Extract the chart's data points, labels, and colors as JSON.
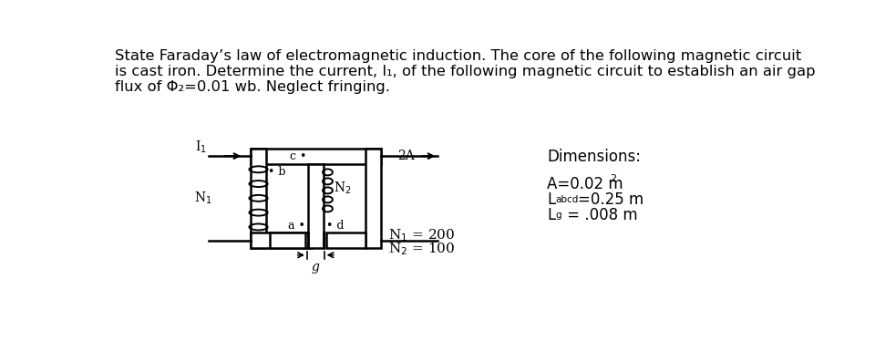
{
  "bg_color": "#ffffff",
  "fig_width": 9.6,
  "fig_height": 3.74,
  "dpi": 100,
  "para_line1": "State Faraday’s law of electromagnetic induction. The core of the following magnetic circuit",
  "para_line2": "is cast iron. Determine the current, I₁, of the following magnetic circuit to establish an air gap",
  "para_line3": "flux of Φ₂=0.01 wb. Neglect fringing.",
  "dimensions_title": "Dimensions:",
  "dim_A": "A=0.02 m",
  "dim_A_sup": "2",
  "dim_Labcd_pre": "L",
  "dim_Labcd_sub": "abcd",
  "dim_Labcd_post": "=0.25 m",
  "dim_Lg_pre": "L",
  "dim_Lg_sub": "g",
  "dim_Lg_post": " = .008 m",
  "n1_label": "N₁ = 200",
  "n2_label": "N₂ = 100",
  "font_size_para": 11.8,
  "font_size_dim": 12.0
}
